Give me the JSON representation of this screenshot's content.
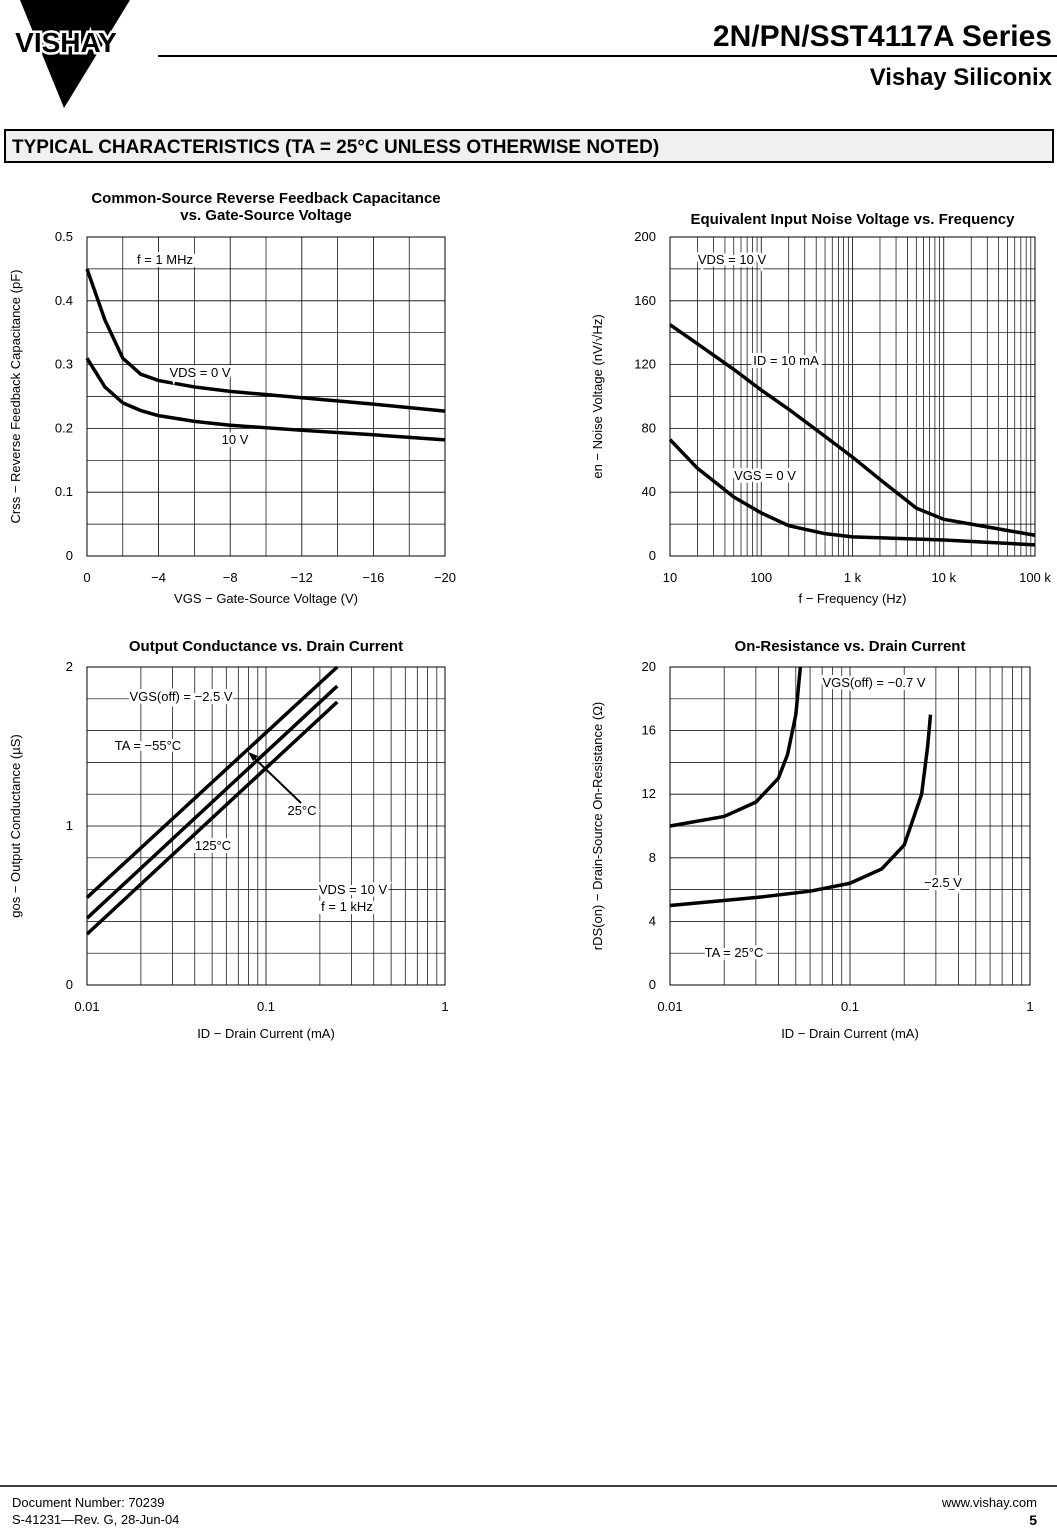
{
  "header": {
    "logo": "VISHAY",
    "title": "2N/PN/SST4117A Series",
    "subtitle": "Vishay Siliconix"
  },
  "section": "TYPICAL CHARACTERISTICS (TA = 25°C UNLESS OTHERWISE NOTED)",
  "chart_data": [
    {
      "type": "line",
      "title": [
        "Common-Source Reverse Feedback Capacitance",
        "vs. Gate-Source Voltage"
      ],
      "x_label": "VGS − Gate-Source Voltage (V)",
      "y_label": "Crss − Reverse Feedback Capacitance (pF)",
      "xscale": "linear",
      "xlim": [
        0,
        -20
      ],
      "xticks": [
        0,
        {
          "value": -4,
          "label": "−4"
        },
        {
          "value": -8,
          "label": "−8"
        },
        {
          "value": -12,
          "label": "−12"
        },
        {
          "value": -16,
          "label": "−16"
        },
        {
          "value": -20,
          "label": "−20"
        }
      ],
      "ylim": [
        0,
        0.5
      ],
      "yticks": [
        0,
        0.1,
        0.2,
        0.3,
        0.4,
        0.5
      ],
      "grid": true,
      "annotations": [
        "f = 1 MHz"
      ],
      "series": [
        {
          "name": "VDS = 0 V",
          "color": "#000",
          "x": [
            0,
            -1,
            -2,
            -3,
            -4,
            -6,
            -8,
            -12,
            -16,
            -20
          ],
          "values": [
            0.45,
            0.37,
            0.31,
            0.285,
            0.275,
            0.265,
            0.258,
            0.248,
            0.238,
            0.227
          ]
        },
        {
          "name": "10 V",
          "color": "#000",
          "x": [
            0,
            -1,
            -2,
            -3,
            -4,
            -6,
            -8,
            -12,
            -16,
            -20
          ],
          "values": [
            0.31,
            0.265,
            0.24,
            0.228,
            0.22,
            0.211,
            0.205,
            0.197,
            0.19,
            0.182
          ]
        }
      ]
    },
    {
      "type": "line",
      "title": [
        "Equivalent Input Noise Voltage vs. Frequency"
      ],
      "x_label": "f − Frequency (Hz)",
      "y_label": "en − Noise Voltage (nV/√Hz)",
      "xscale": "log",
      "xlim": [
        10,
        100000
      ],
      "xticks": [
        10,
        100,
        {
          "value": 1000,
          "label": "1 k"
        },
        {
          "value": 10000,
          "label": "10 k"
        },
        {
          "value": 100000,
          "label": "100 k"
        }
      ],
      "ylim": [
        0,
        200
      ],
      "yticks": [
        0,
        40,
        80,
        120,
        160,
        200
      ],
      "grid": true,
      "annotations": [
        "VDS = 10 V"
      ],
      "series": [
        {
          "name": "ID = 10 mA",
          "color": "#000",
          "x": [
            10,
            20,
            50,
            100,
            200,
            500,
            1000,
            2000,
            5000,
            10000,
            20000,
            50000,
            100000
          ],
          "values": [
            145,
            133,
            117,
            104,
            92,
            75,
            62,
            48,
            30,
            23,
            20,
            16,
            13
          ]
        },
        {
          "name": "VGS = 0 V",
          "color": "#000",
          "x": [
            10,
            20,
            50,
            100,
            200,
            500,
            1000,
            10000,
            100000
          ],
          "values": [
            73,
            55,
            37,
            27,
            19,
            14,
            12,
            10,
            7
          ]
        }
      ]
    },
    {
      "type": "line",
      "title": [
        "Output Conductance vs. Drain Current"
      ],
      "x_label": "ID − Drain Current (mA)",
      "y_label": "gos − Output Conductance (µS)",
      "xscale": "log",
      "xlim": [
        0.01,
        1
      ],
      "xticks": [
        0.01,
        0.1,
        1
      ],
      "ylim": [
        0,
        2
      ],
      "yticks": [
        0,
        1,
        2
      ],
      "grid": true,
      "annotations": [
        "VGS(off) = −2.5 V",
        "VDS = 10 V",
        "f = 1 kHz"
      ],
      "series": [
        {
          "name": "TA = −55°C",
          "color": "#000",
          "x": [
            0.01,
            0.25
          ],
          "values": [
            0.55,
            2.0
          ]
        },
        {
          "name": "25°C",
          "color": "#000",
          "x": [
            0.01,
            0.25
          ],
          "values": [
            0.42,
            1.88
          ]
        },
        {
          "name": "125°C",
          "color": "#000",
          "x": [
            0.01,
            0.25
          ],
          "values": [
            0.32,
            1.78
          ]
        }
      ]
    },
    {
      "type": "line",
      "title": [
        "On-Resistance vs. Drain Current"
      ],
      "x_label": "ID − Drain Current (mA)",
      "y_label": "rDS(on) − Drain-Source On-Resistance (Ω)",
      "xscale": "log",
      "xlim": [
        0.01,
        1
      ],
      "xticks": [
        0.01,
        0.1,
        1
      ],
      "ylim": [
        0,
        20
      ],
      "yticks": [
        0,
        4,
        8,
        12,
        16,
        20
      ],
      "grid": true,
      "annotations": [
        "TA = 25°C"
      ],
      "series": [
        {
          "name": "VGS(off) = −0.7 V",
          "color": "#000",
          "x": [
            0.01,
            0.02,
            0.03,
            0.04,
            0.045,
            0.05,
            0.053
          ],
          "values": [
            10,
            10.6,
            11.5,
            13,
            14.5,
            17,
            20
          ]
        },
        {
          "name": "−2.5 V",
          "color": "#000",
          "x": [
            0.01,
            0.03,
            0.06,
            0.1,
            0.15,
            0.2,
            0.25,
            0.27,
            0.28
          ],
          "values": [
            5,
            5.5,
            5.9,
            6.4,
            7.3,
            8.8,
            12,
            15,
            17
          ]
        }
      ]
    }
  ],
  "footer": {
    "doc": "Document Number:  70239",
    "rev": "S-41231—Rev. G, 28-Jun-04",
    "url": "www.vishay.com",
    "page": "5"
  }
}
